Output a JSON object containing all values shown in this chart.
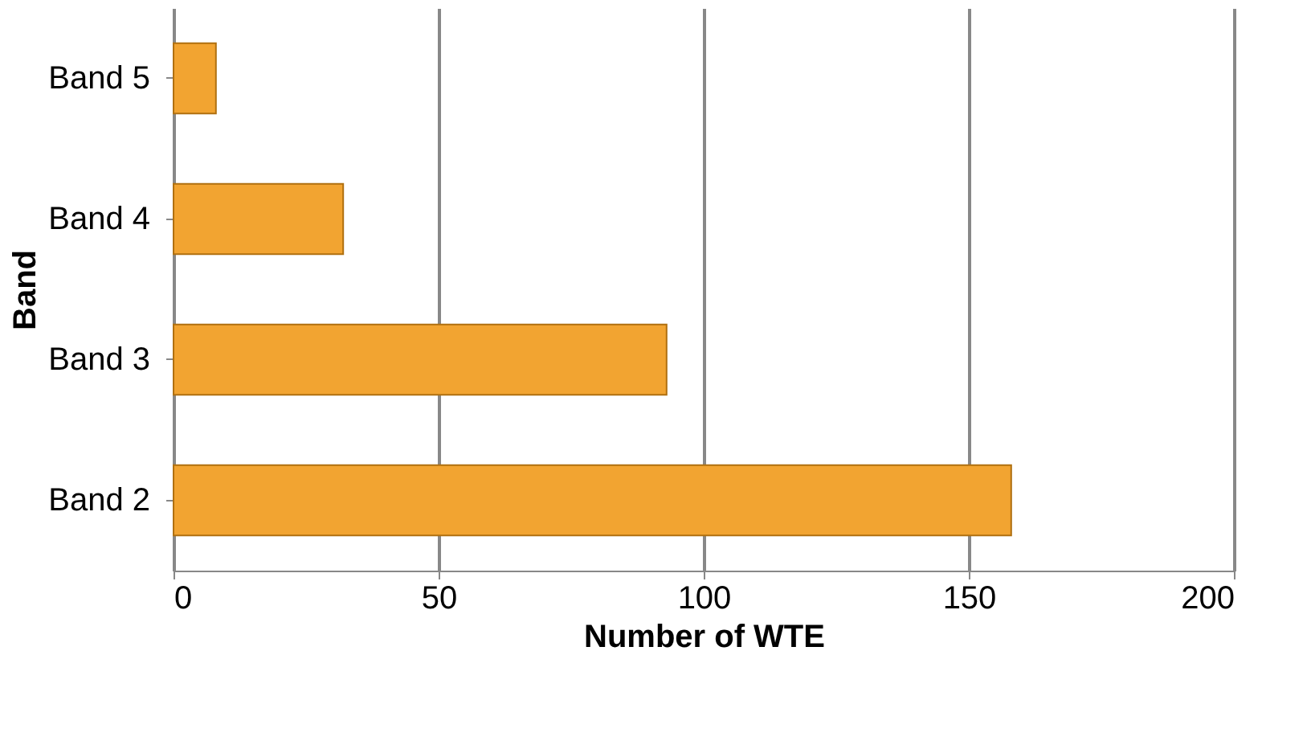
{
  "chart_data": {
    "type": "bar",
    "orientation": "horizontal",
    "xlabel": "Number of WTE",
    "ylabel": "Band",
    "categories": [
      "Band 5",
      "Band 4",
      "Band 3",
      "Band 2"
    ],
    "series": [
      {
        "color": "#f2a431",
        "values": [
          8,
          32,
          93,
          158
        ]
      }
    ],
    "xlim": [
      0,
      200
    ],
    "xticks": [
      0,
      50,
      100,
      150,
      200
    ],
    "grid": "x",
    "legend": false
  }
}
